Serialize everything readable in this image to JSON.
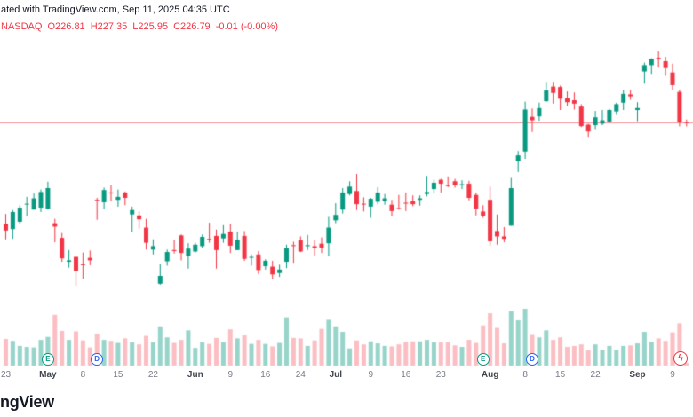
{
  "attribution": "ated with TradingView.com, Sep 11, 2025 04:35 UTC",
  "quote_bar": {
    "symbol": "NASDAQ",
    "o_label": "O",
    "o": "226.81",
    "h_label": "H",
    "h": "227.35",
    "l_label": "L",
    "l": "225.95",
    "c_label": "C",
    "c": "226.79",
    "change": "-0.01 (-0.00%)"
  },
  "logo_text": "ngView",
  "icons": {
    "flash": "ϟ"
  },
  "colors": {
    "up": "#089981",
    "down": "#f23645",
    "vol_up": "rgba(8,153,129,0.42)",
    "vol_down": "rgba(242,54,69,0.32)",
    "price_line": "rgba(242,54,69,0.55)",
    "axis_text": "#787b86",
    "quote_text": "#f23645",
    "background": "#ffffff"
  },
  "chart_data": {
    "type": "candlestick",
    "interval": "1D",
    "price_line": 226.79,
    "volume_pane": true,
    "legend_position": "none",
    "grid": false,
    "x_axis_labels": [
      {
        "index": 0,
        "label": "23",
        "month": false
      },
      {
        "index": 6,
        "label": "May",
        "month": true
      },
      {
        "index": 11,
        "label": "8",
        "month": false
      },
      {
        "index": 16,
        "label": "15",
        "month": false
      },
      {
        "index": 21,
        "label": "22",
        "month": false
      },
      {
        "index": 27,
        "label": "Jun",
        "month": true
      },
      {
        "index": 32,
        "label": "9",
        "month": false
      },
      {
        "index": 37,
        "label": "16",
        "month": false
      },
      {
        "index": 42,
        "label": "24",
        "month": false
      },
      {
        "index": 47,
        "label": "Jul",
        "month": true
      },
      {
        "index": 52,
        "label": "9",
        "month": false
      },
      {
        "index": 57,
        "label": "16",
        "month": false
      },
      {
        "index": 62,
        "label": "23",
        "month": false
      },
      {
        "index": 69,
        "label": "Aug",
        "month": true
      },
      {
        "index": 74,
        "label": "8",
        "month": false
      },
      {
        "index": 79,
        "label": "15",
        "month": false
      },
      {
        "index": 84,
        "label": "22",
        "month": false
      },
      {
        "index": 90,
        "label": "Sep",
        "month": true
      },
      {
        "index": 95,
        "label": "9",
        "month": false
      }
    ],
    "markers": [
      {
        "type": "earnings",
        "label": "E",
        "index": 6
      },
      {
        "type": "dividend",
        "label": "D",
        "index": 13
      },
      {
        "type": "earnings",
        "label": "E",
        "index": 68
      },
      {
        "type": "dividend",
        "label": "D",
        "index": 75
      }
    ],
    "candles_format": [
      "date",
      "open",
      "high",
      "low",
      "close",
      "volume_millions"
    ],
    "candles": [
      [
        "Apr 23",
        206.0,
        208.0,
        202.8,
        204.6,
        53
      ],
      [
        "Apr 24",
        204.9,
        208.8,
        202.9,
        208.4,
        49
      ],
      [
        "Apr 25",
        206.4,
        209.8,
        206.0,
        209.3,
        39
      ],
      [
        "Apr 28",
        210.0,
        211.5,
        207.5,
        210.1,
        37
      ],
      [
        "Apr 29",
        208.9,
        212.2,
        208.9,
        211.2,
        36
      ],
      [
        "Apr 30",
        209.3,
        213.0,
        208.4,
        212.5,
        51
      ],
      [
        "May 1",
        209.1,
        214.6,
        208.9,
        213.3,
        57
      ],
      [
        "May 2",
        206.1,
        207.0,
        202.2,
        205.4,
        101
      ],
      [
        "May 5",
        203.1,
        204.1,
        198.2,
        198.9,
        69
      ],
      [
        "May 6",
        198.2,
        200.6,
        197.0,
        198.5,
        51
      ],
      [
        "May 7",
        199.2,
        199.4,
        193.3,
        196.3,
        68
      ],
      [
        "May 8",
        197.7,
        200.1,
        194.7,
        197.5,
        50
      ],
      [
        "May 9",
        199.0,
        200.5,
        197.5,
        198.5,
        36
      ],
      [
        "May 12",
        210.9,
        211.3,
        206.8,
        210.8,
        63
      ],
      [
        "May 13",
        210.4,
        213.4,
        209.0,
        212.9,
        51
      ],
      [
        "May 14",
        212.4,
        213.9,
        210.6,
        212.3,
        49
      ],
      [
        "May 15",
        210.9,
        213.0,
        209.5,
        211.5,
        45
      ],
      [
        "May 16",
        212.4,
        212.6,
        209.8,
        211.3,
        54
      ],
      [
        "May 19",
        207.9,
        209.5,
        204.3,
        208.8,
        46
      ],
      [
        "May 20",
        207.7,
        208.5,
        205.0,
        206.9,
        42
      ],
      [
        "May 21",
        205.2,
        207.0,
        200.7,
        202.1,
        59
      ],
      [
        "May 22",
        200.7,
        202.8,
        199.7,
        201.4,
        46
      ],
      [
        "May 23",
        193.7,
        197.7,
        193.5,
        195.3,
        78
      ],
      [
        "May 27",
        198.3,
        200.7,
        197.4,
        200.2,
        56
      ],
      [
        "May 28",
        200.6,
        202.7,
        199.9,
        200.4,
        45
      ],
      [
        "May 29",
        203.6,
        203.8,
        198.5,
        200.0,
        51
      ],
      [
        "May 30",
        199.4,
        202.0,
        196.8,
        200.9,
        70
      ],
      [
        "Jun 2",
        200.3,
        202.1,
        200.1,
        201.7,
        35
      ],
      [
        "Jun 3",
        201.4,
        203.8,
        201.0,
        203.3,
        46
      ],
      [
        "Jun 4",
        202.9,
        206.2,
        202.1,
        202.8,
        43
      ],
      [
        "Jun 5",
        203.5,
        204.8,
        196.8,
        200.6,
        55
      ],
      [
        "Jun 6",
        203.0,
        205.7,
        202.1,
        203.9,
        46
      ],
      [
        "Jun 9",
        204.4,
        206.0,
        200.0,
        201.5,
        72
      ],
      [
        "Jun 10",
        200.6,
        204.4,
        200.6,
        202.7,
        54
      ],
      [
        "Jun 11",
        203.5,
        204.5,
        198.4,
        198.8,
        60
      ],
      [
        "Jun 12",
        199.1,
        199.7,
        197.4,
        199.2,
        43
      ],
      [
        "Jun 13",
        199.7,
        200.4,
        195.7,
        196.5,
        51
      ],
      [
        "Jun 16",
        197.3,
        198.7,
        196.6,
        198.4,
        43
      ],
      [
        "Jun 17",
        197.2,
        198.4,
        194.6,
        195.6,
        38
      ],
      [
        "Jun 18",
        195.9,
        197.6,
        195.1,
        196.6,
        45
      ],
      [
        "Jun 20",
        198.2,
        201.7,
        196.9,
        201.0,
        96
      ],
      [
        "Jun 23",
        201.6,
        202.3,
        198.0,
        201.5,
        55
      ],
      [
        "Jun 24",
        202.6,
        203.4,
        200.2,
        200.3,
        54
      ],
      [
        "Jun 25",
        201.4,
        203.7,
        200.6,
        201.6,
        39
      ],
      [
        "Jun 26",
        201.4,
        202.6,
        199.5,
        201.0,
        50
      ],
      [
        "Jun 27",
        201.9,
        203.2,
        200.0,
        201.1,
        73
      ],
      [
        "Jun 30",
        202.0,
        207.4,
        199.3,
        205.2,
        91
      ],
      [
        "Jul 1",
        206.7,
        210.2,
        206.1,
        207.8,
        78
      ],
      [
        "Jul 2",
        208.9,
        213.3,
        208.1,
        212.4,
        67
      ],
      [
        "Jul 3",
        212.1,
        214.7,
        211.8,
        213.6,
        34
      ],
      [
        "Jul 7",
        212.7,
        216.2,
        208.8,
        210.0,
        50
      ],
      [
        "Jul 8",
        210.1,
        211.4,
        208.5,
        210.0,
        42
      ],
      [
        "Jul 9",
        209.5,
        211.3,
        207.2,
        211.1,
        48
      ],
      [
        "Jul 10",
        210.5,
        213.5,
        210.0,
        212.4,
        44
      ],
      [
        "Jul 11",
        210.6,
        212.1,
        209.9,
        211.2,
        39
      ],
      [
        "Jul 14",
        209.9,
        210.9,
        207.5,
        208.6,
        38
      ],
      [
        "Jul 15",
        209.2,
        211.9,
        208.9,
        209.1,
        42
      ],
      [
        "Jul 16",
        210.3,
        212.4,
        208.6,
        210.2,
        47
      ],
      [
        "Jul 17",
        210.6,
        211.8,
        209.6,
        210.0,
        48
      ],
      [
        "Jul 18",
        210.9,
        211.8,
        209.7,
        211.2,
        48
      ],
      [
        "Jul 21",
        212.1,
        215.8,
        211.6,
        212.5,
        51
      ],
      [
        "Jul 22",
        213.1,
        215.0,
        212.2,
        214.4,
        46
      ],
      [
        "Jul 23",
        215.0,
        215.2,
        212.4,
        214.2,
        46
      ],
      [
        "Jul 24",
        213.9,
        215.7,
        213.5,
        213.8,
        46
      ],
      [
        "Jul 25",
        214.7,
        215.2,
        213.4,
        213.9,
        40
      ],
      [
        "Jul 28",
        214.0,
        214.9,
        213.1,
        214.1,
        37
      ],
      [
        "Jul 29",
        214.2,
        214.8,
        210.8,
        211.3,
        51
      ],
      [
        "Jul 30",
        211.9,
        212.4,
        207.7,
        209.1,
        45
      ],
      [
        "Jul 31",
        208.5,
        209.8,
        207.2,
        207.6,
        80
      ],
      [
        "Aug 1",
        210.9,
        213.6,
        201.5,
        202.4,
        104
      ],
      [
        "Aug 4",
        204.5,
        207.9,
        201.7,
        203.4,
        75
      ],
      [
        "Aug 5",
        203.4,
        205.3,
        202.2,
        202.9,
        44
      ],
      [
        "Aug 6",
        205.6,
        215.4,
        205.6,
        213.3,
        108
      ],
      [
        "Aug 7",
        218.8,
        220.9,
        216.6,
        220.0,
        90
      ],
      [
        "Aug 8",
        220.8,
        231.0,
        219.3,
        229.4,
        113
      ],
      [
        "Aug 11",
        227.9,
        229.6,
        224.8,
        227.2,
        61
      ],
      [
        "Aug 12",
        228.0,
        230.8,
        227.1,
        229.7,
        56
      ],
      [
        "Aug 13",
        231.1,
        235.1,
        230.9,
        233.3,
        70
      ],
      [
        "Aug 14",
        234.1,
        235.1,
        230.6,
        232.8,
        51
      ],
      [
        "Aug 15",
        234.0,
        234.3,
        229.3,
        231.6,
        56
      ],
      [
        "Aug 18",
        231.7,
        233.1,
        230.1,
        230.9,
        37
      ],
      [
        "Aug 19",
        231.3,
        232.9,
        229.4,
        230.6,
        39
      ],
      [
        "Aug 20",
        230.0,
        230.5,
        225.8,
        226.0,
        42
      ],
      [
        "Aug 21",
        226.3,
        226.5,
        223.8,
        224.9,
        30
      ],
      [
        "Aug 22",
        226.2,
        229.1,
        225.4,
        227.8,
        42
      ],
      [
        "Aug 25",
        226.5,
        229.3,
        226.2,
        227.2,
        31
      ],
      [
        "Aug 26",
        226.9,
        229.5,
        226.6,
        229.3,
        39
      ],
      [
        "Aug 27",
        229.0,
        230.8,
        228.3,
        230.5,
        31
      ],
      [
        "Aug 28",
        230.8,
        233.4,
        229.3,
        232.6,
        39
      ],
      [
        "Aug 29",
        232.5,
        233.4,
        231.4,
        232.1,
        40
      ],
      [
        "Sep 2",
        229.3,
        230.9,
        227.0,
        229.7,
        44
      ],
      [
        "Sep 3",
        237.2,
        239.0,
        234.7,
        238.5,
        67
      ],
      [
        "Sep 4",
        238.5,
        239.9,
        236.7,
        239.8,
        47
      ],
      [
        "Sep 5",
        240.0,
        241.3,
        238.0,
        239.7,
        54
      ],
      [
        "Sep 8",
        239.3,
        240.2,
        236.3,
        237.9,
        49
      ],
      [
        "Sep 9",
        237.0,
        238.8,
        233.4,
        234.4,
        66
      ],
      [
        "Sep 10",
        233.0,
        233.5,
        225.95,
        226.79,
        84
      ],
      [
        "Sep 11",
        226.81,
        227.35,
        225.95,
        226.79,
        5
      ]
    ]
  }
}
